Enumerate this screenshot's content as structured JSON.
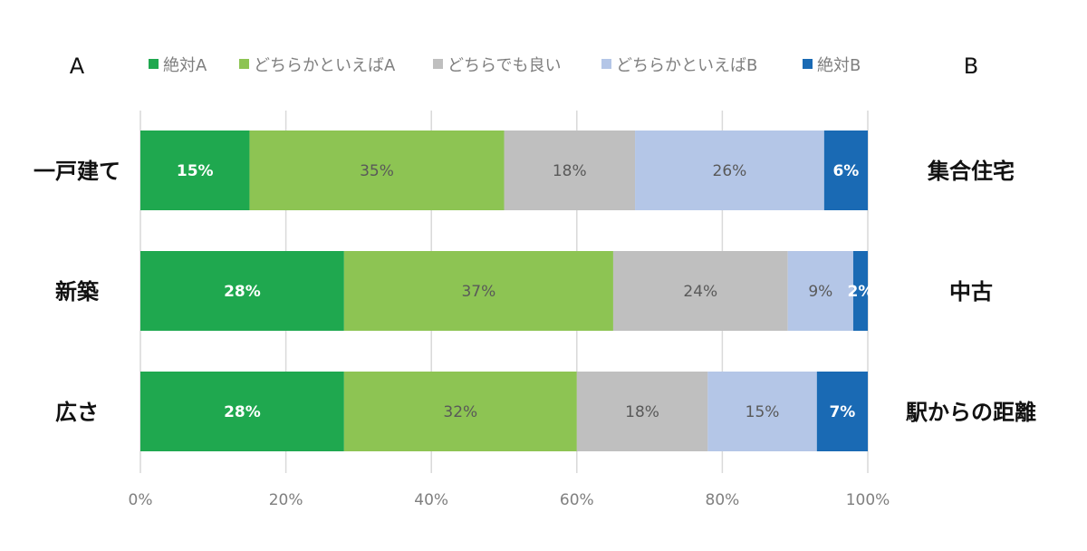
{
  "chart_data": {
    "type": "bar",
    "orientation": "horizontal",
    "stacked": true,
    "left_header": "A",
    "right_header": "B",
    "categories_left": [
      "一戸建て",
      "新築",
      "広さ"
    ],
    "categories_right": [
      "集合住宅",
      "中古",
      "駅からの距離"
    ],
    "series": [
      {
        "name": "絶対A",
        "color": "#1fa84f",
        "label_color": "#ffffff",
        "label_bold": true,
        "values": [
          15,
          28,
          28
        ],
        "labels": [
          "15%",
          "28%",
          "28%"
        ]
      },
      {
        "name": "どちらかといえばA",
        "color": "#8dc453",
        "label_color": "#595959",
        "label_bold": false,
        "values": [
          35,
          37,
          32
        ],
        "labels": [
          "35%",
          "37%",
          "32%"
        ]
      },
      {
        "name": "どちらでも良い",
        "color": "#bfbfbf",
        "label_color": "#595959",
        "label_bold": false,
        "values": [
          18,
          24,
          18
        ],
        "labels": [
          "18%",
          "24%",
          "18%"
        ]
      },
      {
        "name": "どちらかといえばB",
        "color": "#b4c6e7",
        "label_color": "#595959",
        "label_bold": false,
        "values": [
          26,
          9,
          15
        ],
        "labels": [
          "26%",
          "9%",
          "15%"
        ]
      },
      {
        "name": "絶対B",
        "color": "#1a6ab4",
        "label_color": "#ffffff",
        "label_bold": true,
        "values": [
          6,
          2,
          7
        ],
        "labels": [
          "6%",
          "2%",
          "7%"
        ]
      }
    ],
    "xlim": [
      0,
      100
    ],
    "xticks": [
      0,
      20,
      40,
      60,
      80,
      100
    ],
    "xtick_labels": [
      "0%",
      "20%",
      "40%",
      "60%",
      "80%",
      "100%"
    ],
    "grid": true,
    "legend_position": "top"
  }
}
